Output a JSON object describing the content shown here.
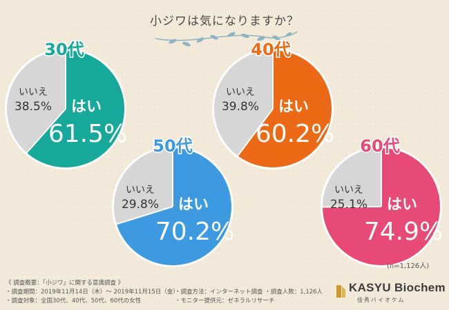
{
  "title": "小ジワは気になりますか？",
  "n_note": "(n=1,126人)",
  "chart_data": {
    "type": "pie",
    "title": "小ジワは気になりますか？",
    "charts": [
      {
        "group": "30代",
        "yes_label": "はい",
        "no_label": "いいえ",
        "yes": 61.5,
        "no": 38.5,
        "yes_text": "61.5%",
        "no_text": "38.5%",
        "color": "#15a89b"
      },
      {
        "group": "40代",
        "yes_label": "はい",
        "no_label": "いいえ",
        "yes": 60.2,
        "no": 39.8,
        "yes_text": "60.2%",
        "no_text": "39.8%",
        "color": "#ec6a16"
      },
      {
        "group": "50代",
        "yes_label": "はい",
        "no_label": "いいえ",
        "yes": 70.2,
        "no": 29.8,
        "yes_text": "70.2%",
        "no_text": "29.8%",
        "color": "#3e9ae0"
      },
      {
        "group": "60代",
        "yes_label": "はい",
        "no_label": "いいえ",
        "yes": 74.9,
        "no": 25.1,
        "yes_text": "74.9%",
        "no_text": "25.1%",
        "color": "#e84a77"
      }
    ],
    "no_color": "#d6d6d6"
  },
  "survey": {
    "heading": "《 調査概要：「小ジワ」に関する意識調査 》",
    "period": "・調査期間：2019年11月14日（木）～ 2019年11月15日（金）",
    "target": "・調査対象：全国30代、40代、50代、60代の女性",
    "method": "・調査方法：インターネット調査",
    "count": "・調査人数：1,126人",
    "provider": "・モニター提供元：ゼネラルリサーチ"
  },
  "logo": {
    "brand": "KASYU Biochem",
    "sub": "佳秀バイオケム"
  }
}
